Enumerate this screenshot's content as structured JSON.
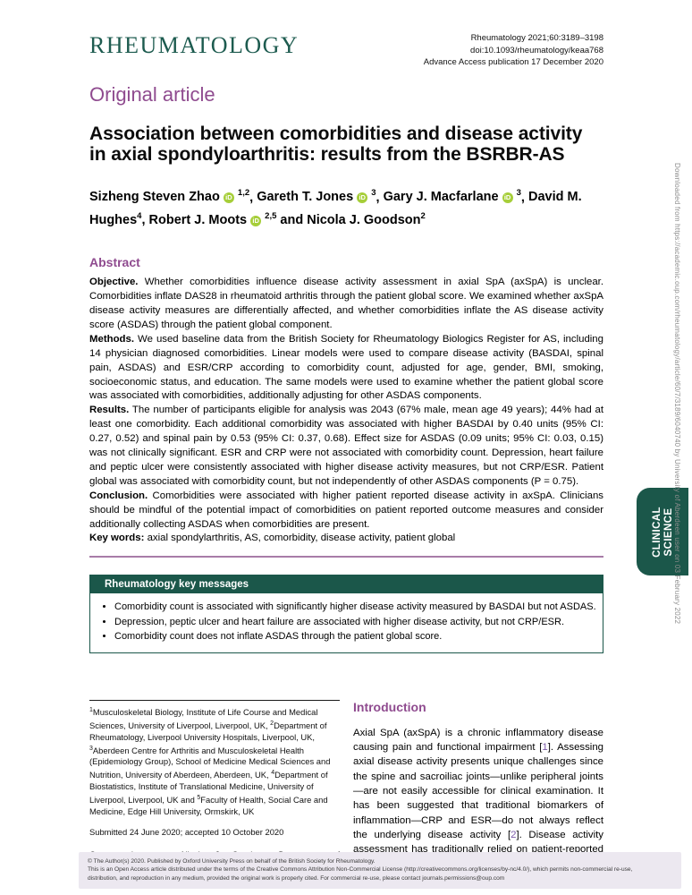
{
  "journal": {
    "logo": "RHEUMATOLOGY",
    "citation": "Rheumatology 2021;60:3189–3198",
    "doi": "doi:10.1093/rheumatology/keaa768",
    "advance_access": "Advance Access publication 17 December 2020",
    "article_type": "Original article"
  },
  "title": "Association between comorbidities and disease activity in axial spondyloarthritis: results from the BSRBR-AS",
  "authors": {
    "items": [
      {
        "name": "Sizheng Steven Zhao",
        "orcid": true,
        "sup": "1,2",
        "sep": ", "
      },
      {
        "name": "Gareth T. Jones",
        "orcid": true,
        "sup": "3",
        "sep": ", "
      },
      {
        "name": "Gary J. Macfarlane",
        "orcid": true,
        "sup": "3",
        "sep": ", "
      },
      {
        "name": "David M. Hughes",
        "orcid": false,
        "sup": "4",
        "sep": ", "
      },
      {
        "name": "Robert J. Moots",
        "orcid": true,
        "sup": "2,5",
        "sep": " and "
      },
      {
        "name": "Nicola J. Goodson",
        "orcid": false,
        "sup": "2",
        "sep": ""
      }
    ],
    "orcid_icon_label": "iD"
  },
  "abstract": {
    "heading": "Abstract",
    "sections": {
      "objective": {
        "label": "Objective.",
        "text": "Whether comorbidities influence disease activity assessment in axial SpA (axSpA) is unclear. Comorbidities inflate DAS28 in rheumatoid arthritis through the patient global score. We examined whether axSpA disease activity measures are differentially affected, and whether comorbidities inflate the AS disease activity score (ASDAS) through the patient global component."
      },
      "methods": {
        "label": "Methods.",
        "text": "We used baseline data from the British Society for Rheumatology Biologics Register for AS, including 14 physician diagnosed comorbidities. Linear models were used to compare disease activity (BASDAI, spinal pain, ASDAS) and ESR/CRP according to comorbidity count, adjusted for age, gender, BMI, smoking, socioeconomic status, and education. The same models were used to examine whether the patient global score was associated with comorbidities, additionally adjusting for other ASDAS components."
      },
      "results": {
        "label": "Results.",
        "text": "The number of participants eligible for analysis was 2043 (67% male, mean age 49 years); 44% had at least one comorbidity. Each additional comorbidity was associated with higher BASDAI by 0.40 units (95% CI: 0.27, 0.52) and spinal pain by 0.53 (95% CI: 0.37, 0.68). Effect size for ASDAS (0.09 units; 95% CI: 0.03, 0.15) was not clinically significant. ESR and CRP were not associated with comorbidity count. Depression, heart failure and peptic ulcer were consistently associated with higher disease activity measures, but not CRP/ESR. Patient global was associated with comorbidity count, but not independently of other ASDAS components (P = 0.75)."
      },
      "conclusion": {
        "label": "Conclusion.",
        "text": "Comorbidities were associated with higher patient reported disease activity in axSpA. Clinicians should be mindful of the potential impact of comorbidities on patient reported outcome measures and consider additionally collecting ASDAS when comorbidities are present."
      }
    },
    "keywords_label": "Key words:",
    "keywords": "axial spondylarthritis, AS, comorbidity, disease activity, patient global"
  },
  "key_messages": {
    "header": "Rheumatology key messages",
    "bullets": [
      "Comorbidity count is associated with significantly higher disease activity measured by BASDAI but not ASDAS.",
      "Depression, peptic ulcer and heart failure are associated with higher disease activity, but not CRP/ESR.",
      "Comorbidity count does not inflate ASDAS through the patient global score."
    ]
  },
  "footnotes": {
    "affiliations": [
      {
        "sup": "1",
        "text": "Musculoskeletal Biology, Institute of Life Course and Medical Sciences, University of Liverpool, Liverpool, UK, "
      },
      {
        "sup": "2",
        "text": "Department of Rheumatology, Liverpool University Hospitals, Liverpool, UK, "
      },
      {
        "sup": "3",
        "text": "Aberdeen Centre for Arthritis and Musculoskeletal Health (Epidemiology Group), School of Medicine Medical Sciences and Nutrition, University of Aberdeen, Aberdeen, UK, "
      },
      {
        "sup": "4",
        "text": "Department of Biostatistics, Institute of Translational Medicine, University of Liverpool, Liverpool, UK and "
      },
      {
        "sup": "5",
        "text": "Faculty of Health, Social Care and Medicine, Edge Hill University, Ormskirk, UK"
      }
    ],
    "submitted": "Submitted 24 June 2020; accepted 10 October 2020",
    "correspondence": "Correspondence to: Nicola J. Goodson, Department of Rheumatology, Liverpool University Hospitals, Lower Lane, Liverpool, L9 7AL, UK. E-mail: ngoodson@liverpool.ac.uk"
  },
  "introduction": {
    "heading": "Introduction",
    "segments": [
      {
        "text": "Axial SpA (axSpA) is a chronic inflammatory disease causing pain and functional impairment ["
      },
      {
        "ref": "1"
      },
      {
        "text": "]. Assessing axial disease activity presents unique challenges since the spine and sacroiliac joints—unlike peripheral joints—are not easily accessible for clinical examination. It has been suggested that traditional biomarkers of inflammation—CRP and ESR—do not always reflect the underlying disease activity ["
      },
      {
        "ref": "2"
      },
      {
        "text": "]. Disease activity assessment has traditionally relied on patient-reported outcome"
      }
    ]
  },
  "sidebar": {
    "download_notice": "Downloaded from https://academic.oup.com/rheumatology/article/60/7/3189/6040740 by University of Aberdeen user on 03 February 2022",
    "section_tab": "CLINICAL\nSCIENCE"
  },
  "footer": {
    "lines": [
      "© The Author(s) 2020. Published by Oxford University Press on behalf of the British Society for Rheumatology.",
      "This is an Open Access article distributed under the terms of the Creative Commons Attribution Non-Commercial License (http://creativecommons.org/licenses/by-nc/4.0/), which permits non-commercial re-use,",
      "distribution, and reproduction in any medium, provided the original work is properly cited. For commercial re-use, please contact journals.permissions@oup.com"
    ]
  },
  "colors": {
    "brand_green": "#1d5b4f",
    "panel_green": "#1b574a",
    "heading_purple": "#8f4b8f",
    "rule_purple": "#a87ca8",
    "reference_link": "#7c5aa8",
    "orcid_green": "#a6ce39",
    "footer_background": "#ece8f0"
  }
}
